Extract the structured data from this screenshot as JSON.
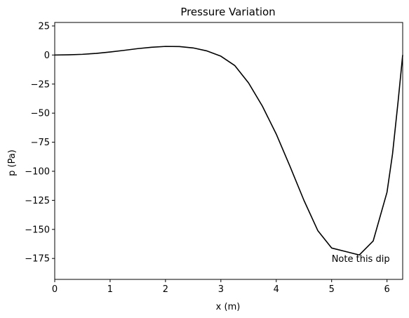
{
  "chart_data": {
    "type": "line",
    "title": "Pressure Variation",
    "xlabel": "x (m)",
    "ylabel": "p (Pa)",
    "xlim": [
      0,
      6.283
    ],
    "ylim": [
      -193,
      28
    ],
    "xticks": [
      0,
      1,
      2,
      3,
      4,
      5,
      6
    ],
    "yticks": [
      25,
      0,
      -25,
      -50,
      -75,
      -100,
      -125,
      -150,
      -175
    ],
    "grid": false,
    "line_color": "#000000",
    "series": [
      {
        "x": [
          0.0,
          0.25,
          0.5,
          0.75,
          1.0,
          1.25,
          1.5,
          1.75,
          2.0,
          2.25,
          2.5,
          2.75,
          3.0,
          3.25,
          3.5,
          3.75,
          4.0,
          4.25,
          4.5,
          4.75,
          5.0,
          5.25,
          5.5,
          5.75,
          6.0,
          6.1,
          6.2,
          6.283
        ],
        "values": [
          0.0,
          0.2,
          0.6,
          1.4,
          2.6,
          4.0,
          5.5,
          6.7,
          7.4,
          7.3,
          6.1,
          3.5,
          -1.0,
          -9.0,
          -24.0,
          -44.0,
          -68.0,
          -96.0,
          -125.0,
          -151.0,
          -166.0,
          -169.0,
          -172.0,
          -160.0,
          -118.0,
          -85.0,
          -40.0,
          0.0
        ]
      }
    ],
    "annotations": [
      {
        "text": "Note this dip",
        "x": 5.0,
        "y": -178
      }
    ]
  }
}
